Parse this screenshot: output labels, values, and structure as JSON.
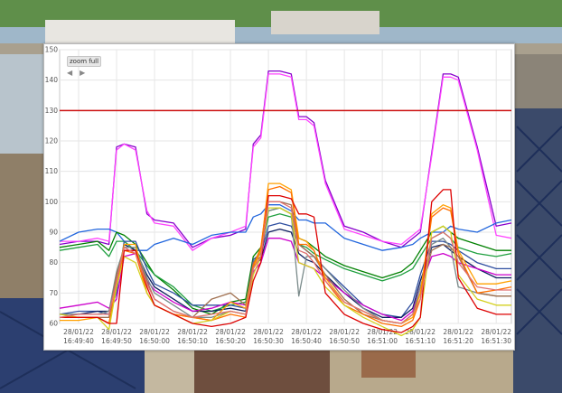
{
  "zoom": {
    "full_label": "zoom full",
    "prev_symbol": "◀",
    "next_symbol": "▶"
  },
  "chart_data": {
    "type": "line",
    "title": "",
    "xlabel": "",
    "ylabel": "",
    "ylim": [
      60,
      150
    ],
    "y_ticks": [
      60,
      70,
      80,
      90,
      100,
      110,
      120,
      130,
      140,
      150
    ],
    "x_ticks": [
      {
        "date": "28/01/22",
        "time": "16:49:40"
      },
      {
        "date": "28/01/22",
        "time": "16:49:50"
      },
      {
        "date": "28/01/22",
        "time": "16:50:00"
      },
      {
        "date": "28/01/22",
        "time": "16:50:10"
      },
      {
        "date": "28/01/22",
        "time": "16:50:20"
      },
      {
        "date": "28/01/22",
        "time": "16:50:30"
      },
      {
        "date": "28/01/22",
        "time": "16:50:40"
      },
      {
        "date": "28/01/22",
        "time": "16:50:50"
      },
      {
        "date": "28/01/22",
        "time": "16:51:00"
      },
      {
        "date": "28/01/22",
        "time": "16:51:10"
      },
      {
        "date": "28/01/22",
        "time": "16:51:20"
      },
      {
        "date": "28/01/22",
        "time": "16:51:30"
      }
    ],
    "x_range": [
      "16:49:35",
      "16:51:34"
    ],
    "threshold": {
      "value": 130,
      "color": "#cc1010"
    },
    "grid": true,
    "x": [
      "16:49:35",
      "16:49:40",
      "16:49:45",
      "16:49:48",
      "16:49:50",
      "16:49:52",
      "16:49:55",
      "16:49:58",
      "16:50:00",
      "16:50:05",
      "16:50:10",
      "16:50:15",
      "16:50:20",
      "16:50:24",
      "16:50:26",
      "16:50:28",
      "16:50:30",
      "16:50:33",
      "16:50:36",
      "16:50:38",
      "16:50:40",
      "16:50:42",
      "16:50:45",
      "16:50:50",
      "16:50:55",
      "16:51:00",
      "16:51:05",
      "16:51:08",
      "16:51:10",
      "16:51:13",
      "16:51:16",
      "16:51:18",
      "16:51:20",
      "16:51:25",
      "16:51:30",
      "16:51:34"
    ],
    "series": [
      {
        "color": "#8800cc",
        "values": [
          86,
          87,
          87,
          86,
          118,
          119,
          118,
          96,
          94,
          93,
          85,
          88,
          89,
          91,
          119,
          122,
          143,
          143,
          142,
          128,
          128,
          126,
          107,
          92,
          90,
          87,
          85,
          88,
          90,
          116,
          142,
          142,
          141,
          118,
          92,
          93
        ]
      },
      {
        "color": "#ff44ff",
        "values": [
          87,
          87,
          88,
          87,
          117,
          119,
          117,
          97,
          93,
          92,
          84,
          88,
          90,
          92,
          118,
          121,
          142,
          142,
          141,
          127,
          127,
          125,
          106,
          91,
          89,
          87,
          86,
          89,
          91,
          115,
          141,
          141,
          140,
          117,
          89,
          88
        ]
      },
      {
        "color": "#2266dd",
        "values": [
          87,
          90,
          91,
          91,
          90,
          87,
          84,
          84,
          86,
          88,
          86,
          89,
          90,
          90,
          95,
          96,
          99,
          99,
          97,
          94,
          94,
          93,
          93,
          88,
          86,
          84,
          85,
          86,
          88,
          90,
          90,
          92,
          91,
          90,
          93,
          94
        ]
      },
      {
        "color": "#008000",
        "values": [
          85,
          86,
          87,
          84,
          90,
          89,
          86,
          80,
          76,
          71,
          65,
          63,
          67,
          68,
          82,
          85,
          97,
          98,
          96,
          88,
          87,
          85,
          82,
          79,
          77,
          75,
          77,
          80,
          84,
          90,
          92,
          90,
          88,
          86,
          84,
          84
        ]
      },
      {
        "color": "#20a040",
        "values": [
          84,
          85,
          86,
          82,
          87,
          87,
          84,
          79,
          76,
          72,
          66,
          64,
          66,
          67,
          80,
          84,
          95,
          96,
          95,
          86,
          85,
          83,
          81,
          78,
          76,
          74,
          76,
          78,
          82,
          88,
          90,
          88,
          85,
          83,
          82,
          83
        ]
      },
      {
        "color": "#2f4fa0",
        "values": [
          63,
          64,
          64,
          63,
          70,
          87,
          87,
          78,
          73,
          70,
          66,
          66,
          66,
          65,
          81,
          83,
          92,
          93,
          92,
          86,
          84,
          82,
          78,
          72,
          66,
          63,
          62,
          67,
          76,
          87,
          87,
          86,
          84,
          80,
          78,
          78
        ]
      },
      {
        "color": "#0f1f60",
        "values": [
          63,
          63,
          64,
          64,
          74,
          86,
          84,
          76,
          72,
          68,
          64,
          64,
          65,
          64,
          79,
          81,
          90,
          91,
          90,
          83,
          81,
          80,
          76,
          70,
          65,
          62,
          62,
          65,
          74,
          85,
          86,
          84,
          82,
          78,
          75,
          75
        ]
      },
      {
        "color": "#cc00cc",
        "values": [
          65,
          66,
          67,
          65,
          68,
          82,
          83,
          74,
          71,
          67,
          64,
          65,
          67,
          66,
          77,
          80,
          88,
          88,
          87,
          80,
          79,
          78,
          75,
          70,
          66,
          63,
          61,
          64,
          72,
          82,
          83,
          82,
          80,
          78,
          76,
          76
        ]
      },
      {
        "color": "#7a8a8a",
        "values": [
          63,
          63,
          63,
          64,
          77,
          85,
          85,
          75,
          70,
          66,
          62,
          62,
          64,
          63,
          80,
          83,
          97,
          98,
          96,
          69,
          82,
          82,
          78,
          71,
          65,
          61,
          60,
          63,
          72,
          86,
          88,
          85,
          72,
          70,
          69,
          69
        ]
      },
      {
        "color": "#a07050",
        "values": [
          62,
          62,
          62,
          62,
          76,
          84,
          84,
          74,
          68,
          64,
          62,
          68,
          70,
          66,
          80,
          82,
          100,
          100,
          99,
          86,
          84,
          82,
          76,
          68,
          63,
          61,
          60,
          63,
          70,
          84,
          86,
          85,
          82,
          70,
          69,
          69
        ]
      },
      {
        "color": "#ffa000",
        "values": [
          61,
          61,
          62,
          60,
          73,
          86,
          86,
          70,
          66,
          63,
          62,
          61,
          67,
          65,
          78,
          84,
          106,
          106,
          104,
          88,
          87,
          84,
          75,
          67,
          64,
          61,
          60,
          62,
          70,
          96,
          99,
          98,
          84,
          73,
          73,
          74
        ]
      },
      {
        "color": "#ff7000",
        "values": [
          62,
          62,
          62,
          60,
          72,
          84,
          83,
          70,
          66,
          63,
          62,
          61,
          63,
          62,
          79,
          85,
          104,
          105,
          103,
          86,
          86,
          84,
          74,
          66,
          63,
          60,
          59,
          61,
          68,
          95,
          98,
          97,
          83,
          70,
          71,
          72
        ]
      },
      {
        "color": "#d4d020",
        "values": [
          63,
          62,
          62,
          58,
          72,
          82,
          80,
          70,
          66,
          63,
          60,
          61,
          64,
          63,
          76,
          82,
          98,
          98,
          96,
          80,
          79,
          78,
          72,
          66,
          62,
          59,
          56,
          58,
          62,
          90,
          92,
          90,
          76,
          68,
          66,
          66
        ]
      },
      {
        "color": "#dd0000",
        "values": [
          62,
          62,
          62,
          60,
          60,
          84,
          84,
          72,
          66,
          63,
          60,
          59,
          60,
          62,
          74,
          80,
          102,
          102,
          101,
          96,
          96,
          95,
          70,
          63,
          60,
          58,
          57,
          59,
          62,
          100,
          104,
          104,
          75,
          65,
          63,
          63
        ]
      },
      {
        "color": "#e07070",
        "values": [
          62,
          63,
          63,
          63,
          74,
          85,
          83,
          73,
          68,
          64,
          62,
          63,
          64,
          63,
          78,
          82,
          100,
          100,
          98,
          84,
          83,
          80,
          74,
          67,
          64,
          61,
          60,
          63,
          68,
          88,
          90,
          88,
          80,
          72,
          71,
          71
        ]
      }
    ]
  }
}
